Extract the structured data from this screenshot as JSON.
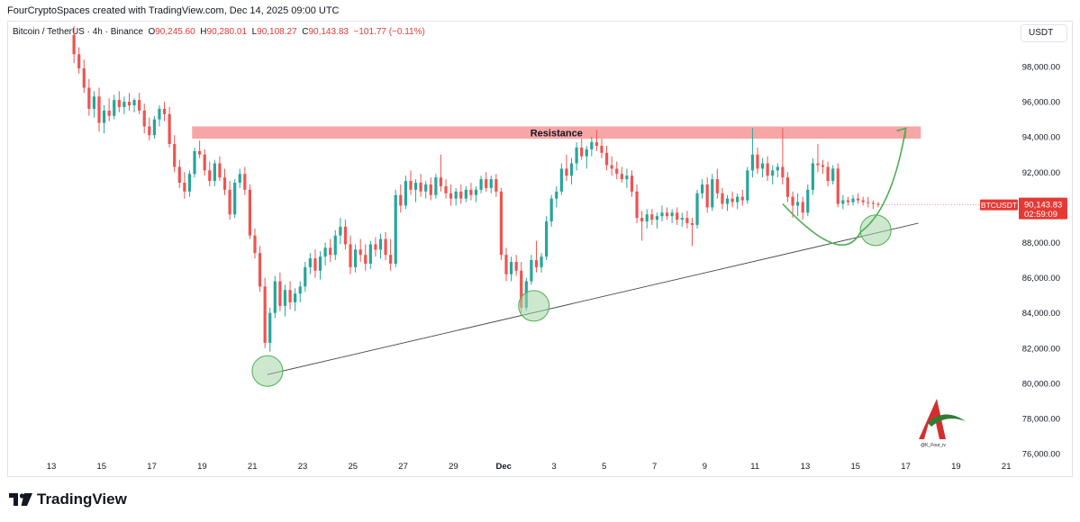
{
  "header": {
    "credit": "FourCryptoSpaces created with TradingView.com, Dec 14, 2025 09:00 UTC"
  },
  "legend": {
    "symbol": "Bitcoin / TetherUS · 4h · Binance",
    "o_key": "O",
    "o_val": "90,245.60",
    "h_key": "H",
    "h_val": "90,280.01",
    "l_key": "L",
    "l_val": "90,108.27",
    "c_key": "C",
    "c_val": "90,143.83",
    "change": "−101.77 (−0.11%)"
  },
  "currency_button": "USDT",
  "price_tag": {
    "symbol": "BTCUSDT",
    "price": "90,143.83",
    "countdown": "02:59:09"
  },
  "watermark": "@K_Four_iv",
  "brand": "TradingView",
  "colors": {
    "up": "#26a69a",
    "down": "#ef5350",
    "resistance": "#f7a1a1",
    "projection": "#4caf50",
    "support_circle": "#a5d6a7"
  },
  "chart_data": {
    "type": "candlestick",
    "ylim": [
      75500,
      100500
    ],
    "x_tick_labels": [
      "13",
      "15",
      "17",
      "19",
      "21",
      "23",
      "25",
      "27",
      "29",
      "Dec",
      "3",
      "5",
      "7",
      "9",
      "11",
      "13",
      "15",
      "17",
      "19",
      "21"
    ],
    "y_tick_labels": [
      "98,000.00",
      "96,000.00",
      "94,000.00",
      "92,000.00",
      "90,000.00",
      "88,000.00",
      "86,000.00",
      "84,000.00",
      "82,000.00",
      "80,000.00",
      "78,000.00",
      "76,000.00"
    ],
    "y_ticks": [
      98000,
      96000,
      94000,
      92000,
      90000,
      88000,
      86000,
      84000,
      82000,
      80000,
      78000,
      76000
    ],
    "last_price": 90143.83,
    "resistance": {
      "label": "Resistance",
      "low": 93900,
      "high": 94600,
      "from_day": 18.6,
      "to_day": 47.6
    },
    "support_line": {
      "from": [
        21.6,
        80500
      ],
      "to": [
        47.5,
        89100
      ]
    },
    "touch_points": [
      [
        21.6,
        80700
      ],
      [
        32.2,
        84400
      ],
      [
        45.8,
        88700
      ]
    ],
    "projection": {
      "start": [
        42.1,
        90200
      ],
      "bottom": [
        45.2,
        88600
      ],
      "end": [
        47.0,
        94500
      ]
    },
    "candles": [
      [
        13.9,
        99800,
        100300,
        98200,
        98700
      ],
      [
        14.1,
        98700,
        99100,
        97600,
        97900
      ],
      [
        14.3,
        97900,
        98400,
        96500,
        96800
      ],
      [
        14.5,
        96800,
        97300,
        95200,
        95600
      ],
      [
        14.7,
        95600,
        96600,
        95100,
        96300
      ],
      [
        14.9,
        96300,
        96800,
        94300,
        94800
      ],
      [
        15.1,
        94800,
        95800,
        94200,
        95500
      ],
      [
        15.3,
        95500,
        96200,
        94900,
        95200
      ],
      [
        15.5,
        95200,
        96400,
        95000,
        96100
      ],
      [
        15.7,
        96100,
        96600,
        95400,
        95700
      ],
      [
        15.9,
        95700,
        96300,
        95300,
        96000
      ],
      [
        16.1,
        96000,
        96500,
        95500,
        95800
      ],
      [
        16.3,
        95800,
        96200,
        95400,
        96100
      ],
      [
        16.5,
        96100,
        96500,
        95300,
        95500
      ],
      [
        16.7,
        95500,
        95900,
        94200,
        94600
      ],
      [
        16.9,
        94600,
        95100,
        93800,
        94100
      ],
      [
        17.1,
        94100,
        95200,
        93900,
        95000
      ],
      [
        17.3,
        95000,
        95800,
        94600,
        95600
      ],
      [
        17.5,
        95600,
        96000,
        94900,
        95300
      ],
      [
        17.7,
        95300,
        95700,
        93400,
        93600
      ],
      [
        17.9,
        93600,
        94100,
        92000,
        92300
      ],
      [
        18.1,
        92300,
        92700,
        91100,
        91400
      ],
      [
        18.3,
        91400,
        92000,
        90500,
        90900
      ],
      [
        18.5,
        90900,
        92100,
        90600,
        91900
      ],
      [
        18.7,
        91900,
        93400,
        91700,
        93200
      ],
      [
        18.9,
        93200,
        93800,
        92800,
        93000
      ],
      [
        19.1,
        93000,
        93300,
        91800,
        92100
      ],
      [
        19.3,
        92100,
        92600,
        91200,
        91500
      ],
      [
        19.5,
        91500,
        92700,
        91200,
        92500
      ],
      [
        19.7,
        92500,
        92900,
        91500,
        91700
      ],
      [
        19.9,
        91700,
        92200,
        90700,
        91000
      ],
      [
        20.1,
        91000,
        91500,
        89300,
        89600
      ],
      [
        20.3,
        89600,
        91600,
        89400,
        91400
      ],
      [
        20.5,
        91400,
        92200,
        91100,
        91900
      ],
      [
        20.7,
        91900,
        92300,
        90700,
        91000
      ],
      [
        20.9,
        91000,
        91300,
        88200,
        88400
      ],
      [
        21.1,
        88400,
        88800,
        87100,
        87400
      ],
      [
        21.3,
        87400,
        87800,
        85200,
        85500
      ],
      [
        21.5,
        85500,
        86000,
        82000,
        82300
      ],
      [
        21.7,
        82300,
        84300,
        81800,
        84000
      ],
      [
        21.9,
        84000,
        86100,
        83700,
        85800
      ],
      [
        22.1,
        85800,
        86300,
        84100,
        84400
      ],
      [
        22.3,
        84400,
        85600,
        83800,
        85300
      ],
      [
        22.5,
        85300,
        85800,
        84200,
        84600
      ],
      [
        22.7,
        84600,
        85400,
        84100,
        85100
      ],
      [
        22.9,
        85100,
        85800,
        84600,
        85500
      ],
      [
        23.1,
        85500,
        86900,
        85200,
        86600
      ],
      [
        23.3,
        86600,
        87400,
        86200,
        87100
      ],
      [
        23.5,
        87100,
        87600,
        86000,
        86400
      ],
      [
        23.7,
        86400,
        87500,
        85900,
        87200
      ],
      [
        23.9,
        87200,
        88000,
        86700,
        87700
      ],
      [
        24.1,
        87700,
        88200,
        86900,
        87300
      ],
      [
        24.3,
        87300,
        88700,
        87000,
        88400
      ],
      [
        24.5,
        88400,
        89400,
        87900,
        88900
      ],
      [
        24.7,
        88900,
        89300,
        87600,
        87900
      ],
      [
        24.9,
        87900,
        88400,
        86200,
        86600
      ],
      [
        25.1,
        86600,
        87900,
        86300,
        87600
      ],
      [
        25.3,
        87600,
        88200,
        86900,
        87300
      ],
      [
        25.5,
        87300,
        87900,
        86400,
        86800
      ],
      [
        25.7,
        86800,
        88100,
        86500,
        87900
      ],
      [
        25.9,
        87900,
        88300,
        87200,
        87600
      ],
      [
        26.1,
        87600,
        88500,
        87100,
        88200
      ],
      [
        26.3,
        88200,
        88600,
        87000,
        87300
      ],
      [
        26.5,
        87300,
        88200,
        86400,
        86800
      ],
      [
        26.7,
        86800,
        91000,
        86600,
        90700
      ],
      [
        26.9,
        90700,
        91300,
        89700,
        90100
      ],
      [
        27.1,
        90100,
        91800,
        89900,
        91500
      ],
      [
        27.3,
        91500,
        92100,
        90700,
        91000
      ],
      [
        27.5,
        91000,
        91600,
        90300,
        91400
      ],
      [
        27.7,
        91400,
        91900,
        90600,
        90900
      ],
      [
        27.9,
        90900,
        91500,
        90500,
        91300
      ],
      [
        28.1,
        91300,
        91700,
        90400,
        90700
      ],
      [
        28.3,
        90700,
        91900,
        90500,
        91700
      ],
      [
        28.5,
        91700,
        93000,
        90900,
        91200
      ],
      [
        28.7,
        91200,
        91600,
        90500,
        90800
      ],
      [
        28.9,
        90800,
        91300,
        90100,
        90500
      ],
      [
        29.1,
        90500,
        91100,
        90100,
        90900
      ],
      [
        29.3,
        90900,
        91300,
        90200,
        90500
      ],
      [
        29.5,
        90500,
        91200,
        90300,
        91000
      ],
      [
        29.7,
        91000,
        91400,
        90400,
        90700
      ],
      [
        29.9,
        90700,
        91200,
        90300,
        91000
      ],
      [
        30.1,
        91000,
        91800,
        90800,
        91600
      ],
      [
        30.3,
        91600,
        92000,
        90900,
        91100
      ],
      [
        30.5,
        91100,
        91800,
        90800,
        91600
      ],
      [
        30.7,
        91600,
        91900,
        90600,
        90900
      ],
      [
        30.9,
        90900,
        91100,
        87000,
        87300
      ],
      [
        31.1,
        87300,
        87700,
        85800,
        86200
      ],
      [
        31.3,
        86200,
        87200,
        85800,
        86900
      ],
      [
        31.5,
        86900,
        87300,
        86100,
        86400
      ],
      [
        31.7,
        86400,
        86900,
        84000,
        84300
      ],
      [
        31.9,
        84300,
        86000,
        84100,
        85800
      ],
      [
        32.1,
        85800,
        87300,
        85600,
        87000
      ],
      [
        32.3,
        87000,
        88100,
        86300,
        86600
      ],
      [
        32.5,
        86600,
        87400,
        86300,
        87200
      ],
      [
        32.7,
        87200,
        89500,
        87000,
        89200
      ],
      [
        32.9,
        89200,
        90700,
        88900,
        90500
      ],
      [
        33.1,
        90500,
        91200,
        90000,
        90900
      ],
      [
        33.3,
        90900,
        92500,
        90700,
        92200
      ],
      [
        33.5,
        92200,
        93000,
        91500,
        91800
      ],
      [
        33.7,
        91800,
        92800,
        91300,
        92500
      ],
      [
        33.9,
        92500,
        93700,
        92100,
        93400
      ],
      [
        34.1,
        93400,
        93900,
        92700,
        92900
      ],
      [
        34.3,
        92900,
        93500,
        92200,
        93300
      ],
      [
        34.5,
        93300,
        94000,
        92900,
        93700
      ],
      [
        34.7,
        93700,
        94400,
        93200,
        93500
      ],
      [
        34.9,
        93500,
        93900,
        92800,
        93100
      ],
      [
        35.1,
        93100,
        93500,
        92100,
        92400
      ],
      [
        35.3,
        92400,
        92900,
        91800,
        92200
      ],
      [
        35.5,
        92200,
        92600,
        91600,
        91900
      ],
      [
        35.7,
        91900,
        92300,
        91400,
        91600
      ],
      [
        35.9,
        91600,
        92200,
        91100,
        91800
      ],
      [
        36.1,
        91800,
        92100,
        90600,
        90900
      ],
      [
        36.3,
        90900,
        91300,
        89100,
        89400
      ],
      [
        36.5,
        89400,
        89800,
        88100,
        89200
      ],
      [
        36.7,
        89200,
        89900,
        88800,
        89600
      ],
      [
        36.9,
        89600,
        89900,
        89000,
        89300
      ],
      [
        37.1,
        89300,
        89700,
        88800,
        89500
      ],
      [
        37.3,
        89500,
        90100,
        89200,
        89700
      ],
      [
        37.5,
        89700,
        90000,
        89300,
        89500
      ],
      [
        37.7,
        89500,
        89900,
        89100,
        89700
      ],
      [
        37.9,
        89700,
        90000,
        89000,
        89300
      ],
      [
        38.1,
        89300,
        89700,
        88900,
        89400
      ],
      [
        38.3,
        89400,
        89800,
        88800,
        89100
      ],
      [
        38.5,
        89100,
        89400,
        87800,
        89000
      ],
      [
        38.7,
        89000,
        91000,
        88800,
        90800
      ],
      [
        38.9,
        90800,
        91600,
        90500,
        91300
      ],
      [
        39.1,
        91300,
        91700,
        89700,
        90000
      ],
      [
        39.3,
        90000,
        91900,
        89800,
        91600
      ],
      [
        39.5,
        91600,
        92200,
        90500,
        90800
      ],
      [
        39.7,
        90800,
        91100,
        89900,
        90200
      ],
      [
        39.9,
        90200,
        90700,
        89800,
        90500
      ],
      [
        40.1,
        90500,
        90900,
        90000,
        90300
      ],
      [
        40.3,
        90300,
        90800,
        89900,
        90600
      ],
      [
        40.5,
        90600,
        91000,
        90100,
        90400
      ],
      [
        40.7,
        90400,
        92300,
        90200,
        92100
      ],
      [
        40.9,
        92100,
        94500,
        91700,
        93000
      ],
      [
        41.1,
        93000,
        93400,
        91900,
        92200
      ],
      [
        41.3,
        92200,
        92800,
        91700,
        92500
      ],
      [
        41.5,
        92500,
        92900,
        91500,
        91800
      ],
      [
        41.7,
        91800,
        92400,
        91300,
        92100
      ],
      [
        41.9,
        92100,
        92500,
        91700,
        92300
      ],
      [
        42.1,
        92300,
        94500,
        91300,
        91700
      ],
      [
        42.3,
        91700,
        92000,
        90300,
        90600
      ],
      [
        42.5,
        90600,
        90900,
        89400,
        90100
      ],
      [
        42.7,
        90100,
        90800,
        89500,
        90300
      ],
      [
        42.9,
        90300,
        90600,
        89300,
        89700
      ],
      [
        43.1,
        89700,
        91300,
        89500,
        91000
      ],
      [
        43.3,
        91000,
        92800,
        90700,
        92500
      ],
      [
        43.5,
        92500,
        93600,
        92000,
        92400
      ],
      [
        43.7,
        92400,
        92700,
        91900,
        92300
      ],
      [
        43.9,
        92300,
        92600,
        91200,
        91500
      ],
      [
        44.1,
        91500,
        92400,
        91300,
        92200
      ],
      [
        44.3,
        92200,
        92500,
        90000,
        90200
      ],
      [
        44.5,
        90200,
        90700,
        89900,
        90400
      ],
      [
        44.7,
        90400,
        90600,
        90100,
        90300
      ],
      [
        44.9,
        90300,
        90700,
        90100,
        90500
      ],
      [
        45.1,
        90500,
        90800,
        90200,
        90400
      ],
      [
        45.3,
        90400,
        90600,
        90100,
        90300
      ],
      [
        45.5,
        90300,
        90600,
        90000,
        90250
      ],
      [
        45.7,
        90250,
        90400,
        89900,
        90200
      ],
      [
        45.9,
        90200,
        90300,
        90000,
        90144
      ]
    ]
  }
}
